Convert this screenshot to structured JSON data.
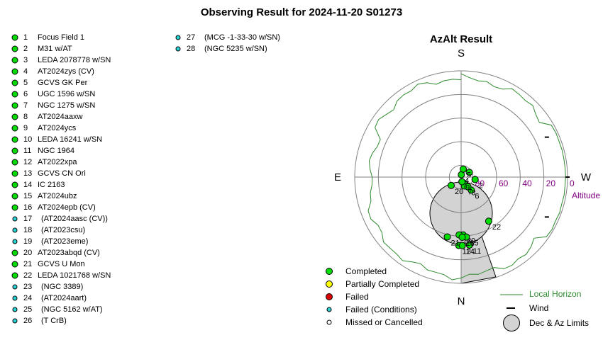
{
  "title": "Observing Result for 2024-11-20 S01273",
  "targets_col1": [
    {
      "num": "1",
      "name": "Focus Field 1",
      "status": "completed"
    },
    {
      "num": "2",
      "name": "M31 w/AT",
      "status": "completed"
    },
    {
      "num": "3",
      "name": "LEDA 2078778 w/SN",
      "status": "completed"
    },
    {
      "num": "4",
      "name": "AT2024zys (CV)",
      "status": "completed"
    },
    {
      "num": "5",
      "name": "GCVS GK Per",
      "status": "completed"
    },
    {
      "num": "6",
      "name": "UGC 1596 w/SN",
      "status": "completed"
    },
    {
      "num": "7",
      "name": "NGC 1275 w/SN",
      "status": "completed"
    },
    {
      "num": "8",
      "name": "AT2024aaxw",
      "status": "completed"
    },
    {
      "num": "9",
      "name": "AT2024ycs",
      "status": "completed"
    },
    {
      "num": "10",
      "name": "LEDA 16241 w/SN",
      "status": "completed"
    },
    {
      "num": "11",
      "name": "NGC 1964",
      "status": "completed"
    },
    {
      "num": "12",
      "name": "AT2022xpa",
      "status": "completed"
    },
    {
      "num": "13",
      "name": "GCVS CN Ori",
      "status": "completed"
    },
    {
      "num": "14",
      "name": "IC 2163",
      "status": "completed"
    },
    {
      "num": "15",
      "name": "AT2024ubz",
      "status": "completed"
    },
    {
      "num": "16",
      "name": "AT2024epb (CV)",
      "status": "completed"
    },
    {
      "num": "17",
      "name": "(AT2024aasc (CV))",
      "status": "failed-conditions"
    },
    {
      "num": "18",
      "name": "(AT2023csu)",
      "status": "failed-conditions"
    },
    {
      "num": "19",
      "name": "(AT2023eme)",
      "status": "failed-conditions"
    },
    {
      "num": "20",
      "name": "AT2023abqd (CV)",
      "status": "completed"
    },
    {
      "num": "21",
      "name": "GCVS U Mon",
      "status": "completed"
    },
    {
      "num": "22",
      "name": "LEDA 1021768 w/SN",
      "status": "completed"
    },
    {
      "num": "23",
      "name": "(NGC 3389)",
      "status": "failed-conditions"
    },
    {
      "num": "24",
      "name": "(AT2024aart)",
      "status": "failed-conditions"
    },
    {
      "num": "25",
      "name": "(NGC 5162 w/AT)",
      "status": "failed-conditions"
    },
    {
      "num": "26",
      "name": "(T CrB)",
      "status": "failed-conditions"
    }
  ],
  "targets_col2": [
    {
      "num": "27",
      "name": "(MCG -1-33-30 w/SN)",
      "status": "failed-conditions"
    },
    {
      "num": "28",
      "name": "(NGC 5235 w/SN)",
      "status": "failed-conditions"
    }
  ],
  "chart": {
    "title": "AzAlt Result",
    "directions": {
      "s": "S",
      "n": "N",
      "e": "E",
      "w": "W"
    },
    "altitude_label": "Altitude",
    "altitude_ticks": [
      "80",
      "60",
      "40",
      "20",
      "0"
    ],
    "points": [
      {
        "label": "1",
        "alt": 82,
        "az": 300
      },
      {
        "label": "2",
        "alt": 78,
        "az": 260
      },
      {
        "label": "3",
        "alt": 84,
        "az": 205
      },
      {
        "label": "4",
        "alt": 88,
        "az": 355
      },
      {
        "label": "5",
        "alt": 83,
        "az": 345
      },
      {
        "label": "6",
        "alt": 76,
        "az": 218
      },
      {
        "label": "7",
        "alt": 82,
        "az": 200
      },
      {
        "label": "8",
        "alt": 80,
        "az": 215
      },
      {
        "label": "9",
        "alt": 86,
        "az": 190
      },
      {
        "label": "10",
        "alt": 41,
        "az": 182
      },
      {
        "label": "11",
        "alt": 32,
        "az": 187
      },
      {
        "label": "12",
        "alt": 32,
        "az": 178
      },
      {
        "label": "13",
        "alt": 41,
        "az": 178
      },
      {
        "label": "14",
        "alt": 32,
        "az": 181
      },
      {
        "label": "15",
        "alt": 39,
        "az": 185
      },
      {
        "label": "16",
        "alt": 39,
        "az": 181
      },
      {
        "label": "20",
        "alt": 79,
        "az": 130
      },
      {
        "label": "21",
        "alt": 38,
        "az": 167
      },
      {
        "label": "22",
        "alt": 46,
        "az": 212
      }
    ],
    "winds": [
      {
        "label": "wind 1",
        "alt": 10,
        "az": 245
      },
      {
        "label": "wind 2",
        "alt": 0,
        "az": 270
      },
      {
        "label": "wind 3",
        "alt": 10,
        "az": 295
      }
    ]
  },
  "legend": {
    "completed": "Completed",
    "partial": "Partially Completed",
    "failed": "Failed",
    "failed_conditions": "Failed (Conditions)",
    "missed": "Missed or Cancelled",
    "horizon": "Local Horizon",
    "wind": "Wind",
    "limits": "Dec & Az Limits"
  },
  "colors": {
    "completed": "#00dd00",
    "partial": "#ffff00",
    "failed": "#dd0000",
    "failed_conditions": "#2bd4d4",
    "horizon": "#2e8b2e",
    "limits_fill": "#d3d3d3",
    "altitude_text": "#800080"
  }
}
